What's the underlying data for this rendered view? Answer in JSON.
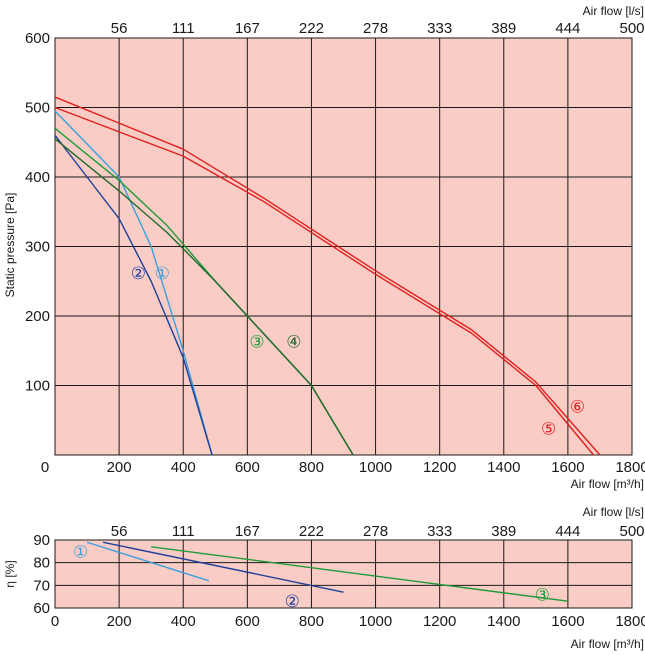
{
  "chart_data": [
    {
      "type": "line",
      "ylabel": "Static pressure [Pa]",
      "xlabel": "Air flow [m³/h]",
      "x2label": "Air flow [l/s]",
      "xlim": [
        0,
        1800
      ],
      "ylim": [
        0,
        600
      ],
      "x_ticks": [
        "200",
        "400",
        "600",
        "800",
        "1000",
        "1200",
        "1400",
        "1600",
        "1800"
      ],
      "x2_ticks": [
        "56",
        "111",
        "167",
        "222",
        "278",
        "333",
        "389",
        "444",
        "500"
      ],
      "y_ticks": [
        "0",
        "100",
        "200",
        "300",
        "400",
        "500",
        "600"
      ],
      "grid": true,
      "background": "#f9cdc5",
      "series": [
        {
          "name": "①",
          "color": "#3aa0dd",
          "x": [
            0,
            200,
            300,
            400,
            490
          ],
          "y": [
            495,
            400,
            300,
            150,
            0
          ]
        },
        {
          "name": "②",
          "color": "#1f3f9a",
          "x": [
            0,
            100,
            200,
            300,
            400,
            490
          ],
          "y": [
            460,
            400,
            340,
            250,
            140,
            0
          ]
        },
        {
          "name": "③",
          "color": "#1f9a3a",
          "x": [
            0,
            200,
            350,
            500,
            650,
            800,
            930
          ],
          "y": [
            470,
            395,
            330,
            250,
            175,
            100,
            0
          ]
        },
        {
          "name": "④",
          "color": "#1f6a2a",
          "x": [
            0,
            200,
            350,
            500,
            650,
            800,
            930
          ],
          "y": [
            455,
            380,
            320,
            250,
            175,
            100,
            0
          ]
        },
        {
          "name": "⑤",
          "color": "#e02020",
          "x": [
            0,
            400,
            650,
            1000,
            1300,
            1500,
            1680
          ],
          "y": [
            500,
            430,
            365,
            260,
            175,
            100,
            0
          ]
        },
        {
          "name": "⑥",
          "color": "#e02020",
          "x": [
            0,
            400,
            650,
            1000,
            1300,
            1500,
            1700
          ],
          "y": [
            515,
            440,
            370,
            265,
            180,
            105,
            0
          ]
        }
      ],
      "labels": [
        {
          "text": "②",
          "x": 260,
          "y": 262,
          "color": "#1f3f9a"
        },
        {
          "text": "①",
          "x": 335,
          "y": 262,
          "color": "#3aa0dd"
        },
        {
          "text": "③",
          "x": 630,
          "y": 163,
          "color": "#1f9a3a"
        },
        {
          "text": "④",
          "x": 745,
          "y": 163,
          "color": "#1f6a2a"
        },
        {
          "text": "⑥",
          "x": 1630,
          "y": 70,
          "color": "#e02020"
        },
        {
          "text": "⑤",
          "x": 1540,
          "y": 38,
          "color": "#e02020"
        }
      ]
    },
    {
      "type": "line",
      "ylabel": "η [%]",
      "xlabel": "Air flow [m³/h]",
      "x2label": "Air flow [l/s]",
      "xlim": [
        0,
        1800
      ],
      "ylim": [
        60,
        90
      ],
      "x_ticks": [
        "0",
        "200",
        "400",
        "600",
        "800",
        "1000",
        "1200",
        "1400",
        "1600",
        "1800"
      ],
      "x2_ticks": [
        "56",
        "111",
        "167",
        "222",
        "278",
        "333",
        "389",
        "444",
        "500"
      ],
      "y_ticks": [
        "60",
        "70",
        "80",
        "90"
      ],
      "grid": true,
      "background": "#f9cdc5",
      "series": [
        {
          "name": "①",
          "color": "#3aa0dd",
          "x": [
            100,
            480
          ],
          "y": [
            89,
            72
          ]
        },
        {
          "name": "②",
          "color": "#1f3f9a",
          "x": [
            150,
            900
          ],
          "y": [
            89,
            67
          ]
        },
        {
          "name": "③",
          "color": "#1f9a3a",
          "x": [
            300,
            1600
          ],
          "y": [
            87,
            63
          ]
        }
      ],
      "labels": [
        {
          "text": "①",
          "x": 80,
          "y": 85,
          "color": "#3aa0dd"
        },
        {
          "text": "②",
          "x": 740,
          "y": 63,
          "color": "#1f3f9a"
        },
        {
          "text": "③",
          "x": 1520,
          "y": 66,
          "color": "#1f9a3a"
        }
      ]
    }
  ]
}
